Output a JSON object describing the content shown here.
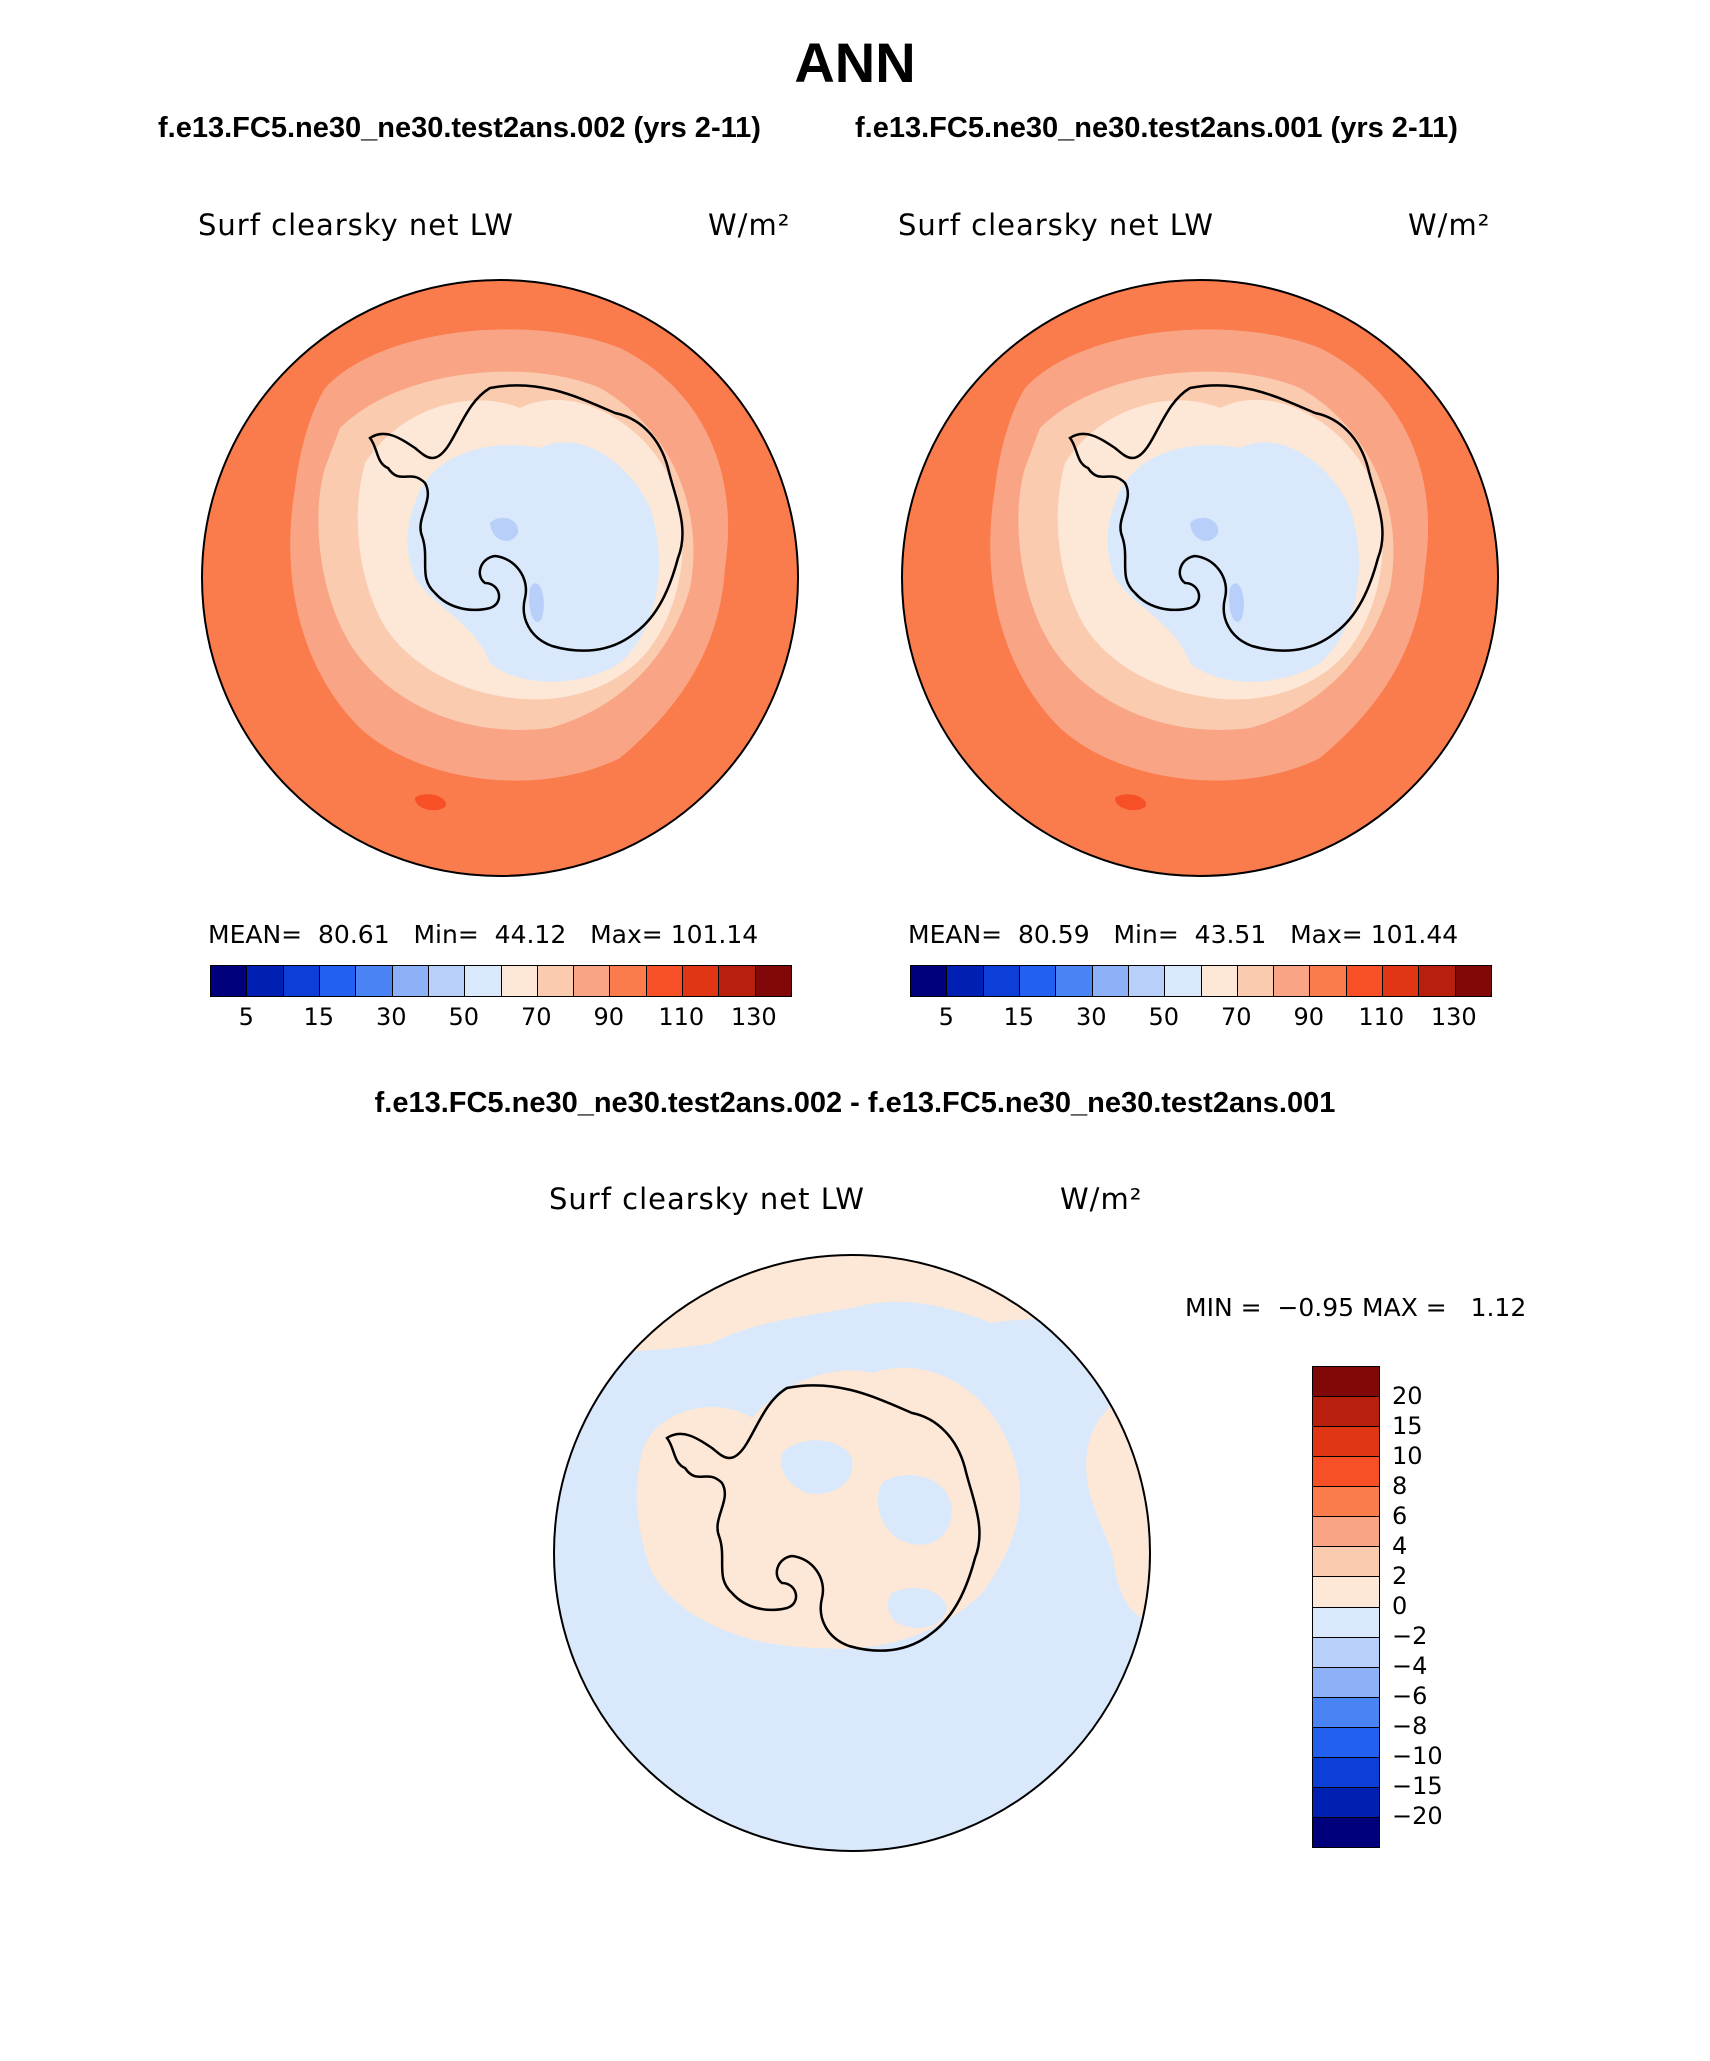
{
  "title": "ANN",
  "subtitle_left": "f.e13.FC5.ne30_ne30.test2ans.002 (yrs 2-11)",
  "subtitle_right": "f.e13.FC5.ne30_ne30.test2ans.001 (yrs 2-11)",
  "diff_title": "f.e13.FC5.ne30_ne30.test2ans.002 - f.e13.FC5.ne30_ne30.test2ans.001",
  "panels": [
    {
      "variable": "Surf clearsky net LW",
      "units": "W/m²",
      "mean_label": "MEAN=",
      "mean": "80.61",
      "min_label": "Min=",
      "min": "44.12",
      "max_label": "Max=",
      "max": "101.14"
    },
    {
      "variable": "Surf clearsky net LW",
      "units": "W/m²",
      "mean_label": "MEAN=",
      "mean": "80.59",
      "min_label": "Min=",
      "min": "43.51",
      "max_label": "Max=",
      "max": "101.44"
    },
    {
      "variable": "Surf clearsky net LW",
      "units": "W/m²",
      "min_label": "MIN =",
      "min": "−0.95",
      "max_label": "MAX =",
      "max": "1.12"
    }
  ],
  "abs_colorbar": {
    "ticks": [
      "5",
      "15",
      "30",
      "50",
      "70",
      "90",
      "110",
      "130"
    ],
    "colors": [
      "#00007d",
      "#0020b4",
      "#0d3fd8",
      "#2460f0",
      "#4a84f4",
      "#8cb1f7",
      "#b8cff9",
      "#d9e9fb",
      "#fde7d6",
      "#fbcbb0",
      "#f9a585",
      "#fa7b4c",
      "#f74f26",
      "#e03616",
      "#b81f0c",
      "#800808"
    ]
  },
  "diff_colorbar": {
    "ticks": [
      "20",
      "15",
      "10",
      "8",
      "6",
      "4",
      "2",
      "0",
      "−2",
      "−4",
      "−6",
      "−8",
      "−10",
      "−15",
      "−20"
    ],
    "colors": [
      "#800808",
      "#b81f0c",
      "#e03616",
      "#f74f26",
      "#fa7b4c",
      "#f9a585",
      "#fbcbb0",
      "#fde7d6",
      "#d9e9fb",
      "#b8cff9",
      "#8cb1f7",
      "#4a84f4",
      "#2460f0",
      "#0d3fd8",
      "#0020b4",
      "#00007d"
    ]
  },
  "map_colors": {
    "outer": "#fa7b4c",
    "mid": "#f9a585",
    "inner": "#fbcbb0",
    "coast": "#fde7d6",
    "plateau": "#d9e9fb",
    "deep": "#b8cff9",
    "hot": "#f74f26",
    "diff_pos": "#fde7d6",
    "diff_neg": "#d9e9fb"
  }
}
